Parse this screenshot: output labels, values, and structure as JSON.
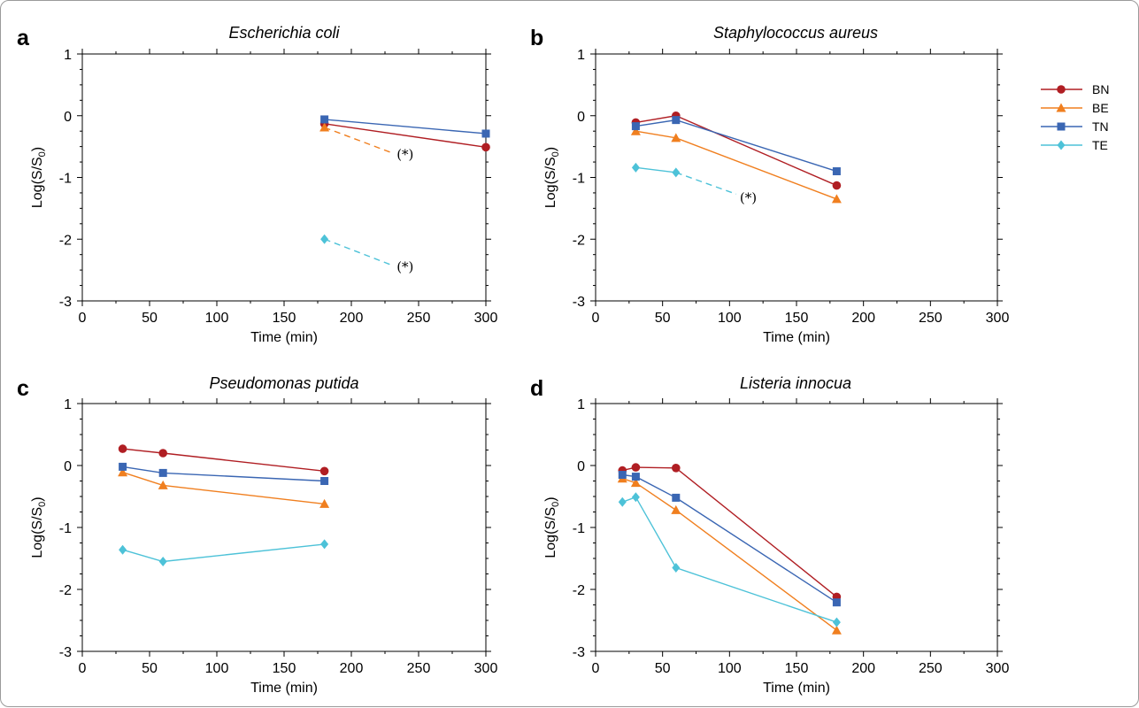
{
  "chart_data": [
    {
      "type": "line",
      "panel": "a",
      "title": "Escherichia coli",
      "xlabel": "Time (min)",
      "ylabel": "Log(S/S",
      "ylabel_sub": "0",
      "ylabel_close": ")",
      "xlim": [
        0,
        300
      ],
      "ylim": [
        -3,
        1
      ],
      "xticks": [
        "0",
        "50",
        "100",
        "150",
        "200",
        "250",
        "300"
      ],
      "yticks": [
        "-3",
        "-2",
        "-1",
        "0",
        "1"
      ],
      "grid": false,
      "series": [
        {
          "name": "BN",
          "x": [
            180,
            300
          ],
          "y": [
            -0.13,
            -0.51
          ]
        },
        {
          "name": "BE",
          "x": [
            180
          ],
          "y": [
            -0.19
          ],
          "dashed_to": [
            230,
            -0.6
          ]
        },
        {
          "name": "TN",
          "x": [
            180,
            300
          ],
          "y": [
            -0.06,
            -0.29
          ]
        },
        {
          "name": "TE",
          "x": [
            180
          ],
          "y": [
            -2.0
          ],
          "dashed_to": [
            230,
            -2.42
          ]
        }
      ],
      "annotations": [
        {
          "text": "(*)",
          "x": 240,
          "y": -0.63
        },
        {
          "text": "(*)",
          "x": 240,
          "y": -2.45
        }
      ]
    },
    {
      "type": "line",
      "panel": "b",
      "title": "Staphylococcus aureus",
      "xlabel": "Time (min)",
      "ylabel": "Log(S/S",
      "ylabel_sub": "0",
      "ylabel_close": ")",
      "xlim": [
        0,
        300
      ],
      "ylim": [
        -3,
        1
      ],
      "xticks": [
        "0",
        "50",
        "100",
        "150",
        "200",
        "250",
        "300"
      ],
      "yticks": [
        "-3",
        "-2",
        "-1",
        "0",
        "1"
      ],
      "grid": false,
      "series": [
        {
          "name": "BN",
          "x": [
            30,
            60,
            180
          ],
          "y": [
            -0.11,
            0.0,
            -1.13
          ]
        },
        {
          "name": "BE",
          "x": [
            30,
            60,
            180
          ],
          "y": [
            -0.25,
            -0.36,
            -1.35
          ]
        },
        {
          "name": "TN",
          "x": [
            30,
            60,
            180
          ],
          "y": [
            -0.17,
            -0.07,
            -0.9
          ]
        },
        {
          "name": "TE",
          "x": [
            30,
            60
          ],
          "y": [
            -0.84,
            -0.92
          ],
          "dashed_to": [
            105,
            -1.27
          ]
        }
      ],
      "annotations": [
        {
          "text": "(*)",
          "x": 114,
          "y": -1.33
        }
      ]
    },
    {
      "type": "line",
      "panel": "c",
      "title": "Pseudomonas putida",
      "xlabel": "Time (min)",
      "ylabel": "Log(S/S",
      "ylabel_sub": "0",
      "ylabel_close": ")",
      "xlim": [
        0,
        300
      ],
      "ylim": [
        -3,
        1
      ],
      "xticks": [
        "0",
        "50",
        "100",
        "150",
        "200",
        "250",
        "300"
      ],
      "yticks": [
        "-3",
        "-2",
        "-1",
        "0",
        "1"
      ],
      "grid": false,
      "series": [
        {
          "name": "BN",
          "x": [
            30,
            60,
            180
          ],
          "y": [
            0.27,
            0.2,
            -0.09
          ]
        },
        {
          "name": "BE",
          "x": [
            30,
            60,
            180
          ],
          "y": [
            -0.11,
            -0.32,
            -0.62
          ]
        },
        {
          "name": "TN",
          "x": [
            30,
            60,
            180
          ],
          "y": [
            -0.02,
            -0.12,
            -0.25
          ]
        },
        {
          "name": "TE",
          "x": [
            30,
            60,
            180
          ],
          "y": [
            -1.36,
            -1.55,
            -1.27
          ]
        }
      ],
      "annotations": []
    },
    {
      "type": "line",
      "panel": "d",
      "title": "Listeria innocua",
      "xlabel": "Time (min)",
      "ylabel": "Log(S/S",
      "ylabel_sub": "0",
      "ylabel_close": ")",
      "xlim": [
        0,
        300
      ],
      "ylim": [
        -3,
        1
      ],
      "xticks": [
        "0",
        "50",
        "100",
        "150",
        "200",
        "250",
        "300"
      ],
      "yticks": [
        "-3",
        "-2",
        "-1",
        "0",
        "1"
      ],
      "grid": false,
      "series": [
        {
          "name": "BN",
          "x": [
            20,
            30,
            60,
            180
          ],
          "y": [
            -0.08,
            -0.03,
            -0.04,
            -2.12
          ]
        },
        {
          "name": "BE",
          "x": [
            20,
            30,
            60,
            180
          ],
          "y": [
            -0.21,
            -0.28,
            -0.72,
            -2.66
          ]
        },
        {
          "name": "TN",
          "x": [
            20,
            30,
            60,
            180
          ],
          "y": [
            -0.15,
            -0.18,
            -0.52,
            -2.21
          ]
        },
        {
          "name": "TE",
          "x": [
            20,
            30,
            60,
            180
          ],
          "y": [
            -0.59,
            -0.51,
            -1.65,
            -2.53
          ]
        }
      ],
      "annotations": []
    }
  ],
  "legend": {
    "placement": "right",
    "entries": [
      {
        "name": "BN",
        "color": "#b01e23",
        "marker": "circle"
      },
      {
        "name": "BE",
        "color": "#f07f1f",
        "marker": "triangle"
      },
      {
        "name": "TN",
        "color": "#3a66b3",
        "marker": "square"
      },
      {
        "name": "TE",
        "color": "#4dc2d8",
        "marker": "diamond"
      }
    ]
  }
}
